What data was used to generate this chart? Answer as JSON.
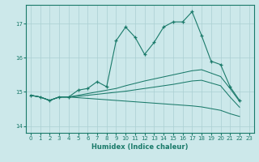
{
  "xlabel": "Humidex (Indice chaleur)",
  "bg_color": "#cce8ea",
  "grid_color": "#aacfd2",
  "line_color": "#1a7a6a",
  "xlim": [
    -0.5,
    23.5
  ],
  "ylim": [
    13.8,
    17.55
  ],
  "yticks": [
    14,
    15,
    16,
    17
  ],
  "xticks": [
    0,
    1,
    2,
    3,
    4,
    5,
    6,
    7,
    8,
    9,
    10,
    11,
    12,
    13,
    14,
    15,
    16,
    17,
    18,
    19,
    20,
    21,
    22,
    23
  ],
  "line1_x": [
    0,
    1,
    2,
    3,
    4,
    5,
    6,
    7,
    8,
    9,
    10,
    11,
    12,
    13,
    14,
    15,
    16,
    17,
    18,
    19,
    20,
    21,
    22
  ],
  "line1_y": [
    14.9,
    14.85,
    14.75,
    14.85,
    14.85,
    15.05,
    15.1,
    15.3,
    15.15,
    16.5,
    16.9,
    16.6,
    16.1,
    16.45,
    16.9,
    17.05,
    17.05,
    17.35,
    16.65,
    15.9,
    15.8,
    15.15,
    14.75
  ],
  "line2_x": [
    0,
    1,
    2,
    3,
    4,
    5,
    6,
    7,
    8,
    9,
    10,
    11,
    12,
    13,
    14,
    15,
    16,
    17,
    18,
    19,
    20,
    21,
    22
  ],
  "line2_y": [
    14.9,
    14.85,
    14.75,
    14.85,
    14.85,
    14.9,
    14.95,
    15.0,
    15.05,
    15.1,
    15.18,
    15.25,
    15.32,
    15.38,
    15.44,
    15.5,
    15.56,
    15.62,
    15.65,
    15.55,
    15.45,
    15.1,
    14.72
  ],
  "line3_x": [
    0,
    1,
    2,
    3,
    4,
    5,
    6,
    7,
    8,
    9,
    10,
    11,
    12,
    13,
    14,
    15,
    16,
    17,
    18,
    19,
    20,
    21,
    22
  ],
  "line3_y": [
    14.9,
    14.85,
    14.75,
    14.85,
    14.85,
    14.87,
    14.9,
    14.93,
    14.96,
    14.99,
    15.02,
    15.06,
    15.1,
    15.14,
    15.18,
    15.22,
    15.27,
    15.32,
    15.34,
    15.26,
    15.18,
    14.85,
    14.55
  ],
  "line4_x": [
    0,
    1,
    2,
    3,
    4,
    5,
    6,
    7,
    8,
    9,
    10,
    11,
    12,
    13,
    14,
    15,
    16,
    17,
    18,
    19,
    20,
    21,
    22
  ],
  "line4_y": [
    14.9,
    14.85,
    14.75,
    14.85,
    14.85,
    14.83,
    14.81,
    14.79,
    14.77,
    14.75,
    14.73,
    14.71,
    14.69,
    14.67,
    14.65,
    14.63,
    14.61,
    14.59,
    14.56,
    14.51,
    14.46,
    14.36,
    14.28
  ]
}
